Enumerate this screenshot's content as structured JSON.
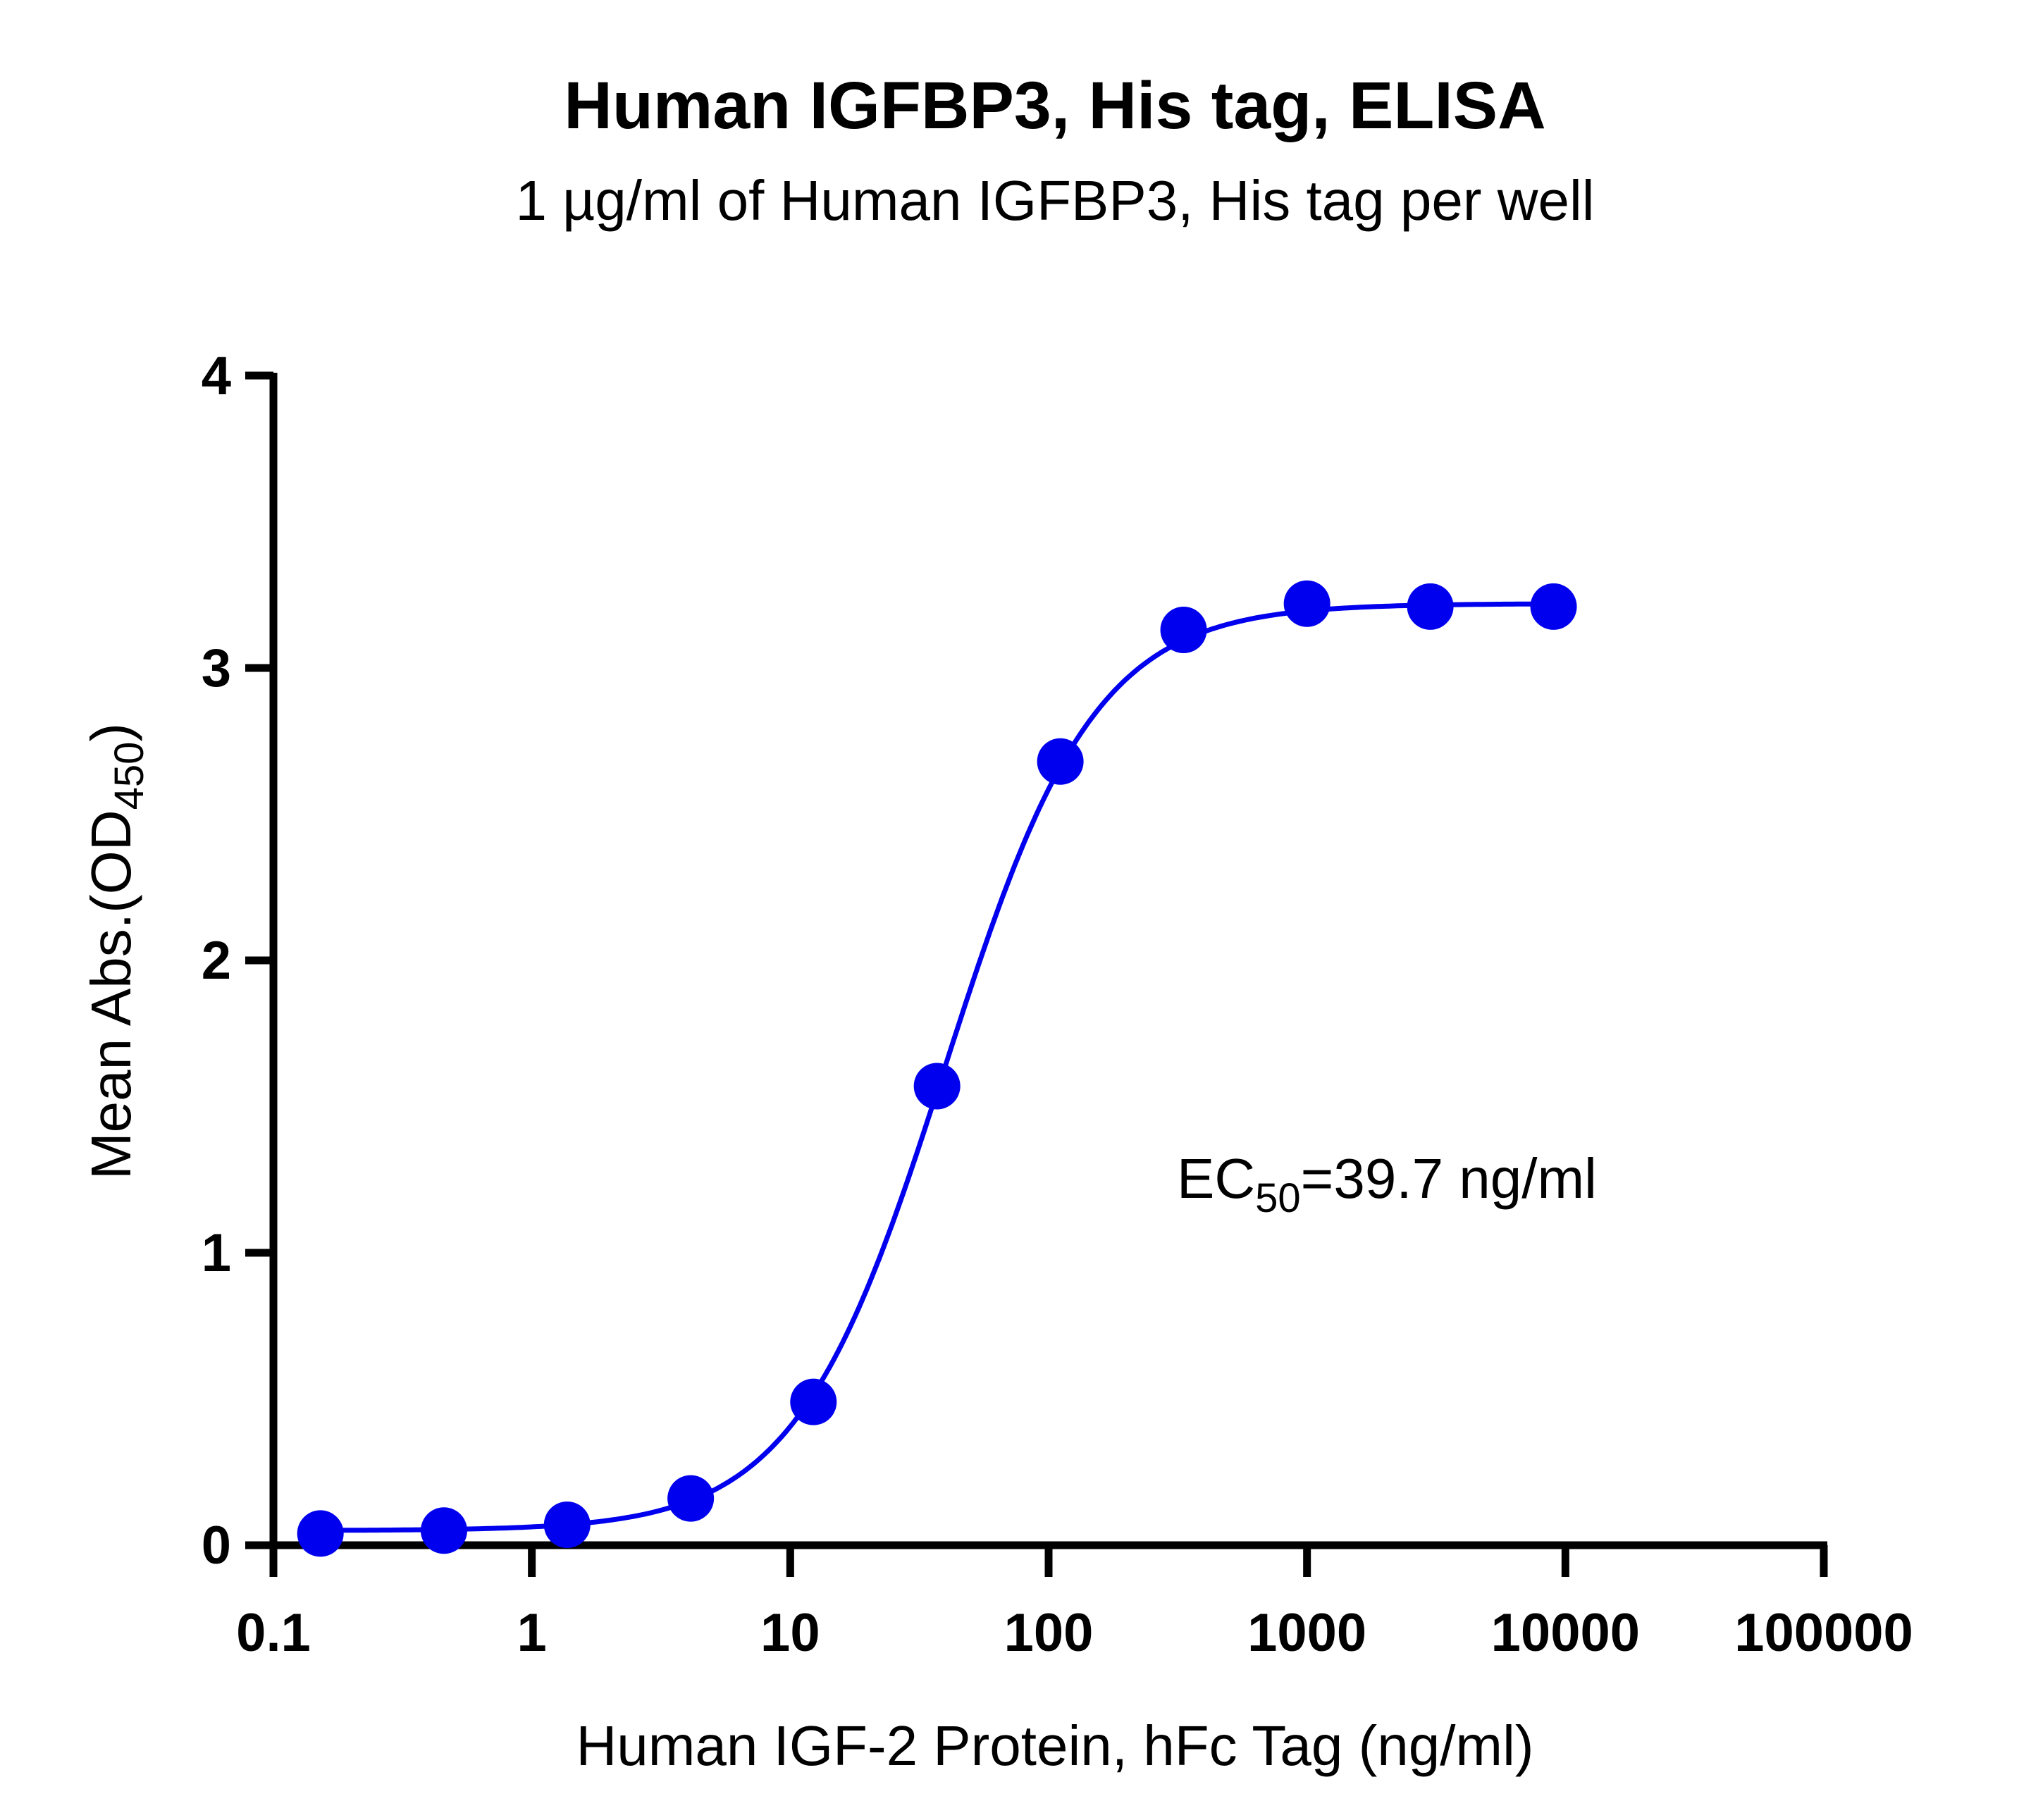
{
  "chart_data": {
    "type": "scatter",
    "title": "Human IGFBP3, His tag, ELISA",
    "subtitle": "1 µg/ml of Human IGFBP3, His tag per well",
    "xlabel": "Human IGF-2 Protein, hFc Tag (ng/ml)",
    "ylabel": {
      "main": "Mean Abs.(OD",
      "sub": "450",
      "end": ")"
    },
    "x_scale": "log",
    "xlim": [
      0.1,
      100000
    ],
    "ylim": [
      0,
      4
    ],
    "x_ticks": [
      {
        "value": 0.1,
        "label": "0.1"
      },
      {
        "value": 1,
        "label": "1"
      },
      {
        "value": 10,
        "label": "10"
      },
      {
        "value": 100,
        "label": "100"
      },
      {
        "value": 1000,
        "label": "1000"
      },
      {
        "value": 10000,
        "label": "10000"
      },
      {
        "value": 100000,
        "label": "100000"
      }
    ],
    "y_ticks": [
      {
        "value": 0,
        "label": "0"
      },
      {
        "value": 1,
        "label": "1"
      },
      {
        "value": 2,
        "label": "2"
      },
      {
        "value": 3,
        "label": "3"
      },
      {
        "value": 4,
        "label": "4"
      }
    ],
    "grid": false,
    "color": "#0000ee",
    "series": [
      {
        "x": [
          0.152,
          0.457,
          1.37,
          4.12,
          12.3,
          37.0,
          111,
          333,
          1000,
          3000,
          9000
        ],
        "y": [
          0.04,
          0.05,
          0.07,
          0.16,
          0.49,
          1.57,
          2.68,
          3.13,
          3.22,
          3.21,
          3.21
        ]
      }
    ],
    "fit_curve": {
      "model": "4PL",
      "bottom": 0.05,
      "top": 3.22,
      "ec50": 39.7,
      "hill": 1.5
    },
    "annotation": {
      "main": "EC",
      "sub": "50",
      "end": "=39.7 ng/ml"
    }
  }
}
